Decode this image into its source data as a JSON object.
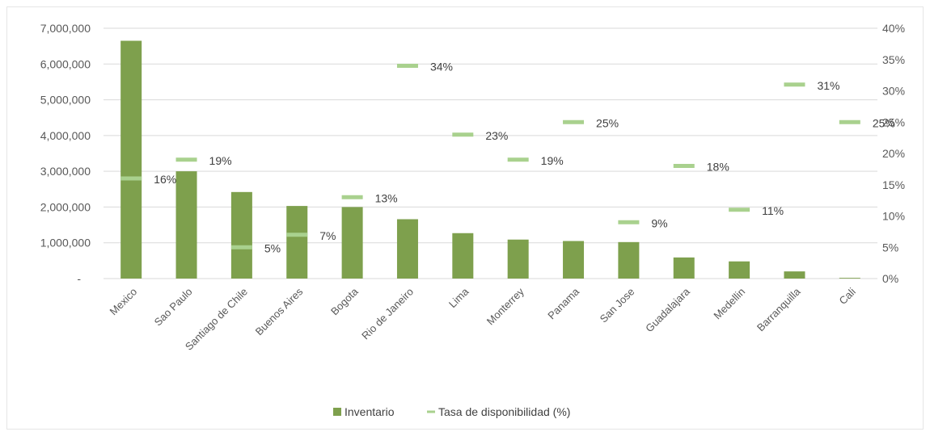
{
  "chart_data": {
    "type": "bar",
    "categories": [
      "Mexico",
      "Sao Paulo",
      "Santiago de Chile",
      "Buenos Aires",
      "Bogota",
      "Rio de Janeiro",
      "Lima",
      "Monterrey",
      "Panama",
      "San Jose",
      "Guadalajara",
      "Medellin",
      "Barranquilla",
      "Cali"
    ],
    "series": [
      {
        "name": "Inventario",
        "type": "bar",
        "axis": "left",
        "values": [
          6650000,
          3000000,
          2420000,
          2030000,
          2000000,
          1660000,
          1270000,
          1090000,
          1050000,
          1020000,
          590000,
          480000,
          200000,
          20000
        ]
      },
      {
        "name": "Tasa de disponibilidad (%)",
        "type": "marker",
        "axis": "right",
        "values": [
          16,
          19,
          5,
          7,
          13,
          34,
          23,
          19,
          25,
          9,
          18,
          11,
          31,
          25
        ],
        "labels": [
          "16%",
          "19%",
          "5%",
          "7%",
          "13%",
          "34%",
          "23%",
          "19%",
          "25%",
          "9%",
          "18%",
          "11%",
          "31%",
          "25%"
        ]
      }
    ],
    "y_left": {
      "min": 0,
      "max": 7000000,
      "ticks": [
        0,
        1000000,
        2000000,
        3000000,
        4000000,
        5000000,
        6000000,
        7000000
      ],
      "tick_labels": [
        "-",
        "1,000,000",
        "2,000,000",
        "3,000,000",
        "4,000,000",
        "5,000,000",
        "6,000,000",
        "7,000,000"
      ]
    },
    "y_right": {
      "min": 0,
      "max": 40,
      "ticks": [
        0,
        5,
        10,
        15,
        20,
        25,
        30,
        35,
        40
      ],
      "tick_labels": [
        "0%",
        "5%",
        "10%",
        "15%",
        "20%",
        "25%",
        "30%",
        "35%",
        "40%"
      ]
    },
    "title": "",
    "xlabel": "",
    "ylabel": "",
    "grid": true,
    "legend": {
      "position": "bottom",
      "entries": [
        "Inventario",
        "Tasa de disponibilidad (%)"
      ]
    },
    "colors": {
      "bar": "#7ea04d",
      "marker": "#a9d18e",
      "grid": "#d9d9d9",
      "text": "#595959"
    }
  }
}
